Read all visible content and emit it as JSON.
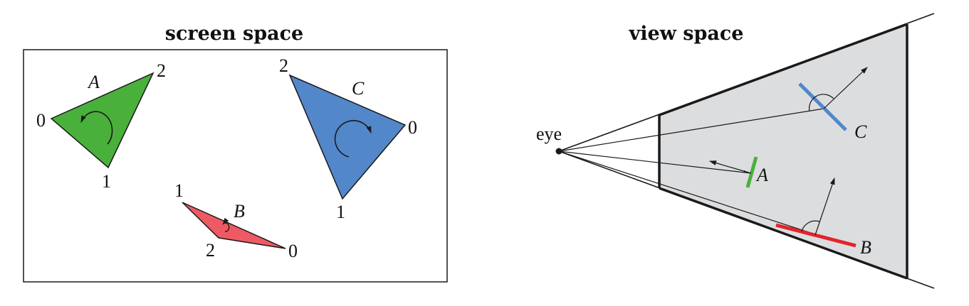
{
  "colors": {
    "green": "#4ab03c",
    "blue": "#5287c9",
    "red": "#ee5a63",
    "red_line": "#e3242b",
    "frustum_fill": "#dcdddf",
    "stroke": "#1a1a1a"
  },
  "screen_space": {
    "title": "screen space",
    "triangles": [
      {
        "name": "A",
        "vertex_labels": [
          "0",
          "1",
          "2"
        ],
        "winding": "counter-clockwise"
      },
      {
        "name": "B",
        "vertex_labels": [
          "0",
          "1",
          "2"
        ],
        "winding": "counter-clockwise"
      },
      {
        "name": "C",
        "vertex_labels": [
          "0",
          "1",
          "2"
        ],
        "winding": "clockwise"
      }
    ]
  },
  "view_space": {
    "title": "view space",
    "eye_label": "eye",
    "surfaces": [
      {
        "name": "A",
        "color": "green",
        "facing": "toward eye"
      },
      {
        "name": "B",
        "color": "red",
        "facing": "away from eye"
      },
      {
        "name": "C",
        "color": "blue",
        "facing": "away from eye"
      }
    ]
  }
}
